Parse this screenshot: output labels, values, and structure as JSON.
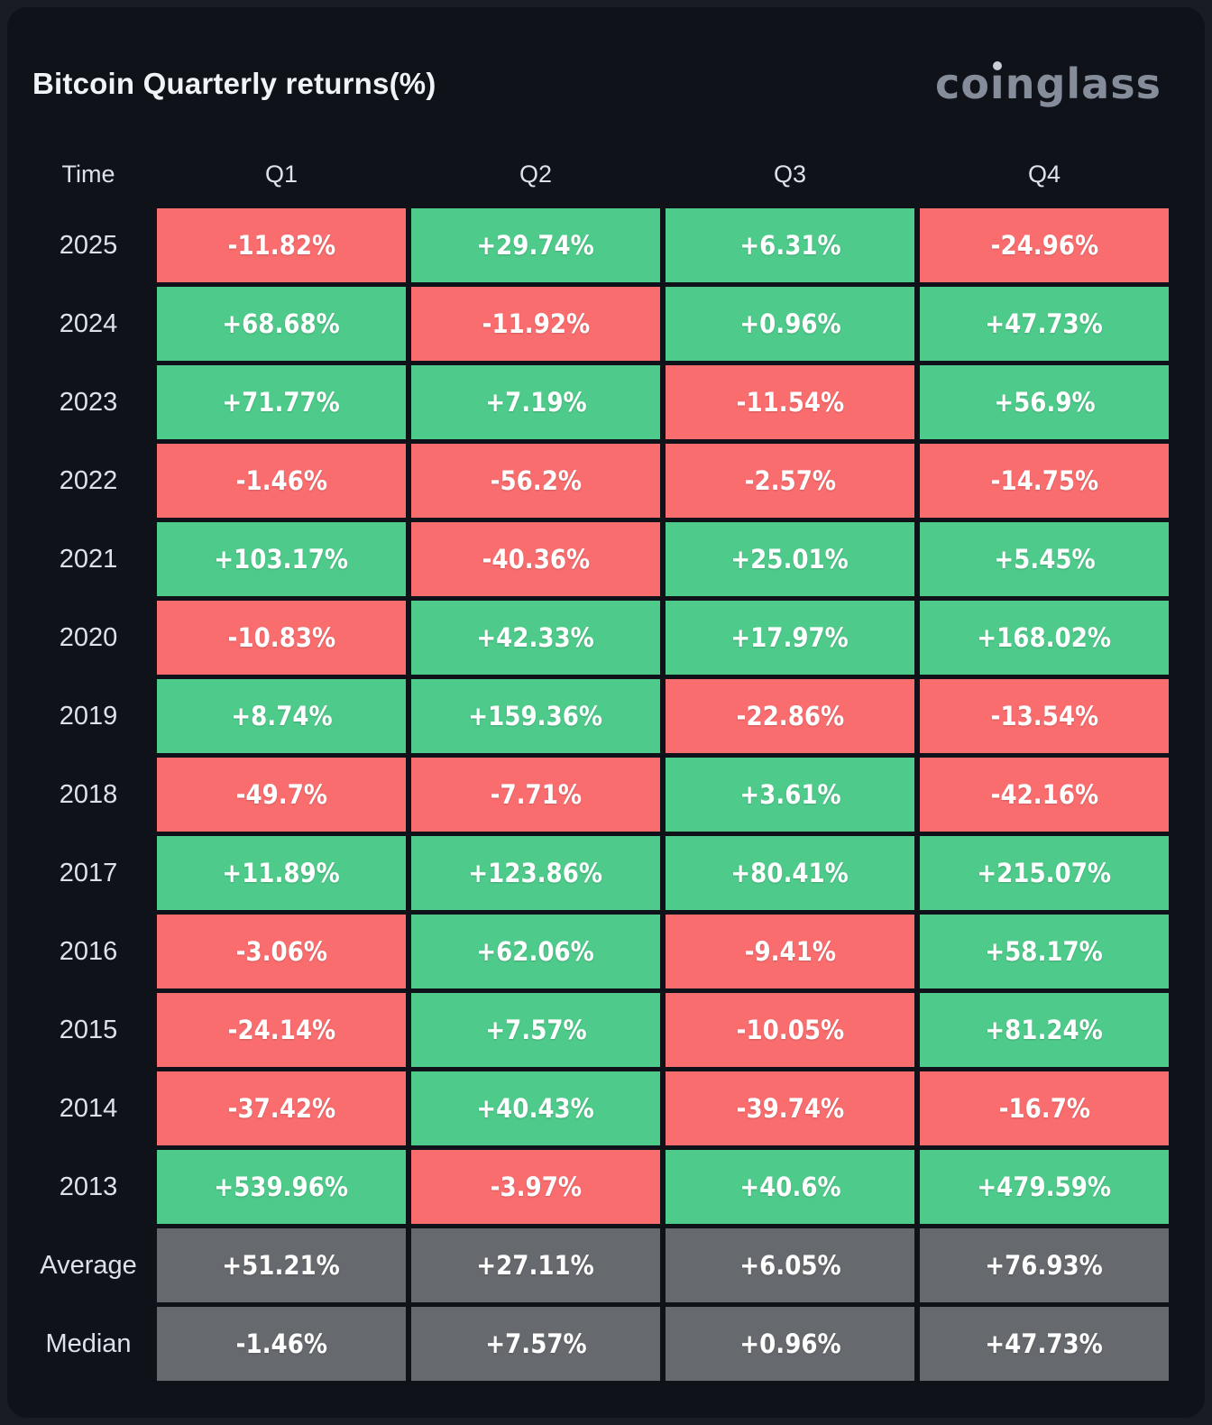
{
  "header": {
    "title": "Bitcoin Quarterly returns(%)",
    "logo": "coinglass"
  },
  "colors": {
    "positive": "#4ecb8b",
    "negative": "#fa6d6f",
    "neutral": "#66696d",
    "card_bg": "#0f1218",
    "page_bg": "#1a1c23",
    "label_text": "#dbe2ea",
    "cell_text": "#ffffff"
  },
  "table": {
    "columns": [
      "Time",
      "Q1",
      "Q2",
      "Q3",
      "Q4"
    ],
    "rows": [
      {
        "label": "2025",
        "cells": [
          {
            "value": "-11.82%",
            "state": "negative"
          },
          {
            "value": "+29.74%",
            "state": "positive"
          },
          {
            "value": "+6.31%",
            "state": "positive"
          },
          {
            "value": "-24.96%",
            "state": "negative"
          }
        ]
      },
      {
        "label": "2024",
        "cells": [
          {
            "value": "+68.68%",
            "state": "positive"
          },
          {
            "value": "-11.92%",
            "state": "negative"
          },
          {
            "value": "+0.96%",
            "state": "positive"
          },
          {
            "value": "+47.73%",
            "state": "positive"
          }
        ]
      },
      {
        "label": "2023",
        "cells": [
          {
            "value": "+71.77%",
            "state": "positive"
          },
          {
            "value": "+7.19%",
            "state": "positive"
          },
          {
            "value": "-11.54%",
            "state": "negative"
          },
          {
            "value": "+56.9%",
            "state": "positive"
          }
        ]
      },
      {
        "label": "2022",
        "cells": [
          {
            "value": "-1.46%",
            "state": "negative"
          },
          {
            "value": "-56.2%",
            "state": "negative"
          },
          {
            "value": "-2.57%",
            "state": "negative"
          },
          {
            "value": "-14.75%",
            "state": "negative"
          }
        ]
      },
      {
        "label": "2021",
        "cells": [
          {
            "value": "+103.17%",
            "state": "positive"
          },
          {
            "value": "-40.36%",
            "state": "negative"
          },
          {
            "value": "+25.01%",
            "state": "positive"
          },
          {
            "value": "+5.45%",
            "state": "positive"
          }
        ]
      },
      {
        "label": "2020",
        "cells": [
          {
            "value": "-10.83%",
            "state": "negative"
          },
          {
            "value": "+42.33%",
            "state": "positive"
          },
          {
            "value": "+17.97%",
            "state": "positive"
          },
          {
            "value": "+168.02%",
            "state": "positive"
          }
        ]
      },
      {
        "label": "2019",
        "cells": [
          {
            "value": "+8.74%",
            "state": "positive"
          },
          {
            "value": "+159.36%",
            "state": "positive"
          },
          {
            "value": "-22.86%",
            "state": "negative"
          },
          {
            "value": "-13.54%",
            "state": "negative"
          }
        ]
      },
      {
        "label": "2018",
        "cells": [
          {
            "value": "-49.7%",
            "state": "negative"
          },
          {
            "value": "-7.71%",
            "state": "negative"
          },
          {
            "value": "+3.61%",
            "state": "positive"
          },
          {
            "value": "-42.16%",
            "state": "negative"
          }
        ]
      },
      {
        "label": "2017",
        "cells": [
          {
            "value": "+11.89%",
            "state": "positive"
          },
          {
            "value": "+123.86%",
            "state": "positive"
          },
          {
            "value": "+80.41%",
            "state": "positive"
          },
          {
            "value": "+215.07%",
            "state": "positive"
          }
        ]
      },
      {
        "label": "2016",
        "cells": [
          {
            "value": "-3.06%",
            "state": "negative"
          },
          {
            "value": "+62.06%",
            "state": "positive"
          },
          {
            "value": "-9.41%",
            "state": "negative"
          },
          {
            "value": "+58.17%",
            "state": "positive"
          }
        ]
      },
      {
        "label": "2015",
        "cells": [
          {
            "value": "-24.14%",
            "state": "negative"
          },
          {
            "value": "+7.57%",
            "state": "positive"
          },
          {
            "value": "-10.05%",
            "state": "negative"
          },
          {
            "value": "+81.24%",
            "state": "positive"
          }
        ]
      },
      {
        "label": "2014",
        "cells": [
          {
            "value": "-37.42%",
            "state": "negative"
          },
          {
            "value": "+40.43%",
            "state": "positive"
          },
          {
            "value": "-39.74%",
            "state": "negative"
          },
          {
            "value": "-16.7%",
            "state": "negative"
          }
        ]
      },
      {
        "label": "2013",
        "cells": [
          {
            "value": "+539.96%",
            "state": "positive"
          },
          {
            "value": "-3.97%",
            "state": "negative"
          },
          {
            "value": "+40.6%",
            "state": "positive"
          },
          {
            "value": "+479.59%",
            "state": "positive"
          }
        ]
      },
      {
        "label": "Average",
        "cells": [
          {
            "value": "+51.21%",
            "state": "neutral"
          },
          {
            "value": "+27.11%",
            "state": "neutral"
          },
          {
            "value": "+6.05%",
            "state": "neutral"
          },
          {
            "value": "+76.93%",
            "state": "neutral"
          }
        ]
      },
      {
        "label": "Median",
        "cells": [
          {
            "value": "-1.46%",
            "state": "neutral"
          },
          {
            "value": "+7.57%",
            "state": "neutral"
          },
          {
            "value": "+0.96%",
            "state": "neutral"
          },
          {
            "value": "+47.73%",
            "state": "neutral"
          }
        ]
      }
    ]
  },
  "chart_data": {
    "type": "heatmap",
    "title": "Bitcoin Quarterly returns(%)",
    "columns": [
      "Q1",
      "Q2",
      "Q3",
      "Q4"
    ],
    "rows": [
      "2025",
      "2024",
      "2023",
      "2022",
      "2021",
      "2020",
      "2019",
      "2018",
      "2017",
      "2016",
      "2015",
      "2014",
      "2013",
      "Average",
      "Median"
    ],
    "values_percent": [
      [
        -11.82,
        29.74,
        6.31,
        -24.96
      ],
      [
        68.68,
        -11.92,
        0.96,
        47.73
      ],
      [
        71.77,
        7.19,
        -11.54,
        56.9
      ],
      [
        -1.46,
        -56.2,
        -2.57,
        -14.75
      ],
      [
        103.17,
        -40.36,
        25.01,
        5.45
      ],
      [
        -10.83,
        42.33,
        17.97,
        168.02
      ],
      [
        8.74,
        159.36,
        -22.86,
        -13.54
      ],
      [
        -49.7,
        -7.71,
        3.61,
        -42.16
      ],
      [
        11.89,
        123.86,
        80.41,
        215.07
      ],
      [
        -3.06,
        62.06,
        -9.41,
        58.17
      ],
      [
        -24.14,
        7.57,
        -10.05,
        81.24
      ],
      [
        -37.42,
        40.43,
        -39.74,
        -16.7
      ],
      [
        539.96,
        -3.97,
        40.6,
        479.59
      ],
      [
        51.21,
        27.11,
        6.05,
        76.93
      ],
      [
        -1.46,
        7.57,
        0.96,
        47.73
      ]
    ],
    "legend": "green = positive return, red = negative return, gray = summary rows",
    "source_label": "coinglass"
  }
}
